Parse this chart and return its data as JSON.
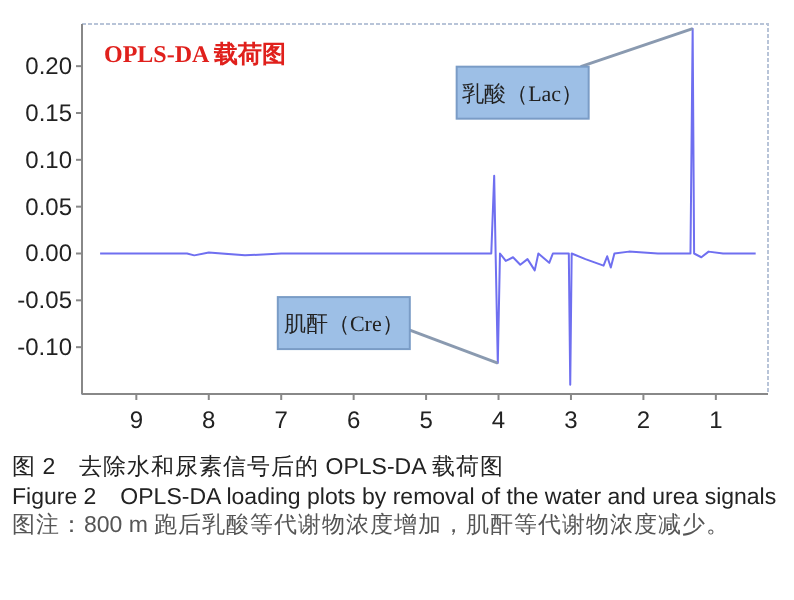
{
  "chart_data": {
    "type": "line",
    "title": "OPLS-DA 载荷图",
    "xlim": [
      9.75,
      0.28
    ],
    "xticks": [
      9,
      8,
      7,
      6,
      5,
      4,
      3,
      2,
      1
    ],
    "ylim": [
      -0.15,
      0.245
    ],
    "yticks": [
      {
        "value": -0.1,
        "label": "-0.10"
      },
      {
        "value": -0.05,
        "label": "-0.05"
      },
      {
        "value": 0,
        "label": "0.00"
      },
      {
        "value": 0.05,
        "label": "0.05"
      },
      {
        "value": 0.1,
        "label": "0.10"
      },
      {
        "value": 0.15,
        "label": "0.15"
      },
      {
        "value": 0.2,
        "label": "0.20"
      }
    ],
    "series": [
      {
        "color": "#6f6ff0",
        "x": [
          9.5,
          8.3,
          8.2,
          8.0,
          7.5,
          7.0,
          5.0,
          4.1,
          4.06,
          4.04,
          4.01,
          3.98,
          3.9,
          3.8,
          3.7,
          3.6,
          3.5,
          3.45,
          3.3,
          3.25,
          3.03,
          3.01,
          2.99,
          2.8,
          2.55,
          2.5,
          2.45,
          2.4,
          2.2,
          1.8,
          1.35,
          1.32,
          1.3,
          1.2,
          1.1,
          0.9,
          0.45
        ],
        "values": [
          0,
          0,
          -0.002,
          0.001,
          -0.002,
          0,
          0,
          0,
          0.083,
          0,
          -0.117,
          0,
          -0.008,
          -0.004,
          -0.012,
          -0.006,
          -0.018,
          0,
          -0.01,
          0,
          0,
          -0.14,
          0,
          -0.006,
          -0.013,
          -0.003,
          -0.015,
          0,
          0.002,
          0,
          0,
          0.24,
          0,
          -0.004,
          0.002,
          0,
          0
        ]
      }
    ],
    "annotations": [
      {
        "text": "乳酸（Lac）",
        "x": 1.32,
        "y": 0.24
      },
      {
        "text": "肌酐（Cre）",
        "x": 4.01,
        "y": -0.117
      },
      "图 2　去除水和尿素信号后的 OPLS-DA 载荷图",
      "Figure 2　OPLS-DA loading plots by removal of the water and urea signals",
      "图注：800 m 跑后乳酸等代谢物浓度增加，肌酐等代谢物浓度减少。"
    ]
  }
}
